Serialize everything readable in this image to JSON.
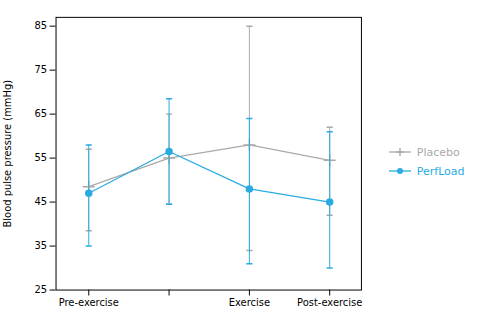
{
  "chart_data": {
    "type": "line",
    "categories": [
      "Pre-exercise",
      null,
      "Exercise",
      "Post-exercise"
    ],
    "series": [
      {
        "name": "Placebo",
        "color": "#aaaaaa",
        "marker": "plus",
        "values": [
          48.5,
          55.0,
          58.0,
          54.5
        ],
        "error_upper": [
          8.5,
          10.0,
          27.0,
          7.5
        ],
        "error_lower": [
          10.0,
          10.5,
          24.0,
          12.5
        ]
      },
      {
        "name": "PerfLoad",
        "color": "#29abe2",
        "marker": "circle",
        "values": [
          47.0,
          56.5,
          48.0,
          45.0
        ],
        "error_upper": [
          11.0,
          12.0,
          16.0,
          16.0
        ],
        "error_lower": [
          12.0,
          12.0,
          17.0,
          15.0
        ]
      }
    ],
    "ylabel": "Blood pulse pressure (mmHg)",
    "ylim": [
      25,
      87
    ],
    "yticks": [
      25,
      35,
      45,
      55,
      65,
      75,
      85
    ],
    "grid": false,
    "legend": "right"
  }
}
